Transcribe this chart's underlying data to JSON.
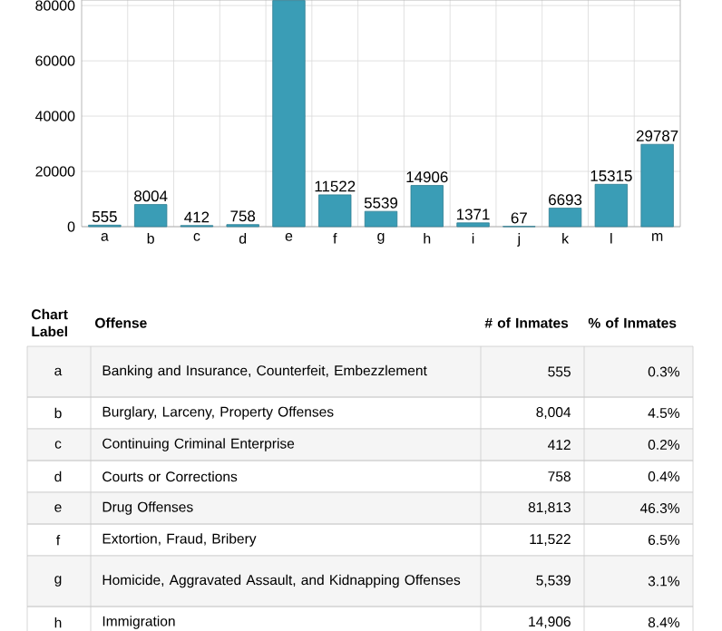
{
  "chart_data": {
    "type": "bar",
    "categories": [
      "a",
      "b",
      "c",
      "d",
      "e",
      "f",
      "g",
      "h",
      "i",
      "j",
      "k",
      "l",
      "m"
    ],
    "values": [
      555,
      8004,
      412,
      758,
      81813,
      11522,
      5539,
      14906,
      1371,
      67,
      6693,
      15315,
      29787
    ],
    "value_labels": [
      "555",
      "8004",
      "412",
      "758",
      null,
      "11522",
      "5539",
      "14906",
      "1371",
      "67",
      "6693",
      "15315",
      "29787"
    ],
    "color": "#3a9db6",
    "ylim": [
      0,
      82000
    ],
    "yticks": [
      0,
      20000,
      40000,
      60000,
      80000
    ],
    "grid": true,
    "annotations": [
      "Chart Label",
      "Offense",
      "# of Inmates",
      "% of Inmates",
      "a",
      "Banking and Insurance, Counterfeit, Embezzlement",
      "555",
      "0.3%",
      "b",
      "Burglary, Larceny, Property Offenses",
      "8,004",
      "4.5%",
      "c",
      "Continuing Criminal Enterprise",
      "412",
      "0.2%",
      "d",
      "Courts or Corrections",
      "758",
      "0.4%",
      "e",
      "Drug Offenses",
      "81,813",
      "46.3%",
      "f",
      "Extortion, Fraud, Bribery",
      "11,522",
      "6.5%",
      "g",
      "Homicide, Aggravated Assault, and Kidnapping Offenses",
      "5,539",
      "3.1%",
      "h",
      "Immigration",
      "14,906",
      "8.4%"
    ]
  }
}
